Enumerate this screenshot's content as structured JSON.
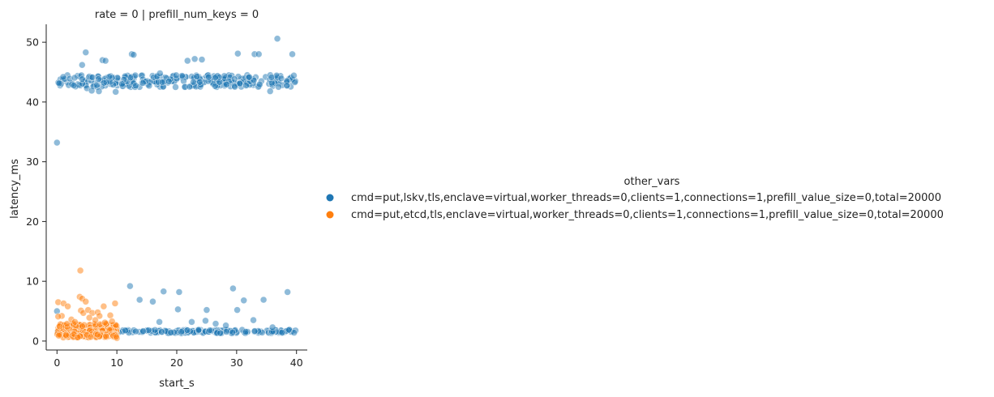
{
  "chart_data": {
    "type": "scatter",
    "title": "rate = 0 | prefill_num_keys = 0",
    "xlabel": "start_s",
    "ylabel": "latency_ms",
    "xlim": [
      -1.8,
      41.8
    ],
    "ylim": [
      -1.5,
      53
    ],
    "xticks": [
      0,
      10,
      20,
      30,
      40
    ],
    "yticks": [
      0,
      10,
      20,
      30,
      40,
      50
    ],
    "grid": false,
    "legend": {
      "title": "other_vars",
      "placement": "right"
    },
    "series": [
      {
        "name": "cmd=put,lskv,tls,enclave=virtual,worker_threads=0,clients=1,connections=1,prefill_value_size=0,total=20000",
        "color": "#1f77b4",
        "bands": [
          {
            "x_range": [
              0,
              40
            ],
            "y_center": 43.5,
            "y_spread": 1.0,
            "count": 300
          },
          {
            "x_range": [
              0,
              40
            ],
            "y_center": 1.6,
            "y_spread": 0.3,
            "count": 240
          }
        ],
        "points": [
          [
            0,
            33.2
          ],
          [
            0,
            5.0
          ],
          [
            4.2,
            46.2
          ],
          [
            4.8,
            48.3
          ],
          [
            7.6,
            47.0
          ],
          [
            8.1,
            46.9
          ],
          [
            12.5,
            48.0
          ],
          [
            12.8,
            47.9
          ],
          [
            17.2,
            44.8
          ],
          [
            21.8,
            46.9
          ],
          [
            23.0,
            47.2
          ],
          [
            24.2,
            47.1
          ],
          [
            30.2,
            48.1
          ],
          [
            33.0,
            48.0
          ],
          [
            33.7,
            48.0
          ],
          [
            36.8,
            50.6
          ],
          [
            39.3,
            48.0
          ],
          [
            5.0,
            42.3
          ],
          [
            5.8,
            41.9
          ],
          [
            7.0,
            41.8
          ],
          [
            9.8,
            41.7
          ],
          [
            19.8,
            42.5
          ],
          [
            35.6,
            41.8
          ],
          [
            12.2,
            9.2
          ],
          [
            13.8,
            6.9
          ],
          [
            16.0,
            6.6
          ],
          [
            17.8,
            8.3
          ],
          [
            20.2,
            5.3
          ],
          [
            20.4,
            8.2
          ],
          [
            25.0,
            5.2
          ],
          [
            29.4,
            8.8
          ],
          [
            30.1,
            5.2
          ],
          [
            31.2,
            6.8
          ],
          [
            32.8,
            3.5
          ],
          [
            34.5,
            6.9
          ],
          [
            38.5,
            8.2
          ],
          [
            17.1,
            3.2
          ],
          [
            22.5,
            3.2
          ],
          [
            24.8,
            3.4
          ],
          [
            26.5,
            2.9
          ],
          [
            28.2,
            2.6
          ],
          [
            36.0,
            2.3
          ],
          [
            39.6,
            1.4
          ]
        ]
      },
      {
        "name": "cmd=put,etcd,tls,enclave=virtual,worker_threads=0,clients=1,connections=1,prefill_value_size=0,total=20000",
        "color": "#ff7f0e",
        "bands": [
          {
            "x_range": [
              0,
              10
            ],
            "y_center": 2.0,
            "y_spread": 0.9,
            "count": 260
          },
          {
            "x_range": [
              0,
              10
            ],
            "y_center": 0.9,
            "y_spread": 0.3,
            "count": 60
          }
        ],
        "points": [
          [
            3.9,
            11.8
          ],
          [
            0.2,
            6.5
          ],
          [
            1.1,
            6.3
          ],
          [
            0.8,
            4.2
          ],
          [
            0.2,
            4.1
          ],
          [
            1.8,
            5.8
          ],
          [
            3.8,
            7.4
          ],
          [
            4.2,
            7.1
          ],
          [
            4.8,
            6.6
          ],
          [
            4.0,
            5.1
          ],
          [
            4.4,
            4.7
          ],
          [
            5.2,
            5.2
          ],
          [
            5.9,
            4.7
          ],
          [
            6.8,
            4.8
          ],
          [
            7.1,
            4.2
          ],
          [
            7.8,
            5.8
          ],
          [
            8.9,
            4.3
          ],
          [
            9.7,
            6.3
          ],
          [
            5.4,
            3.9
          ],
          [
            6.4,
            3.5
          ],
          [
            8.0,
            3.1
          ],
          [
            9.2,
            3.3
          ],
          [
            10.0,
            0.5
          ],
          [
            9.9,
            0.7
          ],
          [
            2.4,
            3.6
          ],
          [
            3.0,
            3.2
          ]
        ]
      }
    ]
  }
}
